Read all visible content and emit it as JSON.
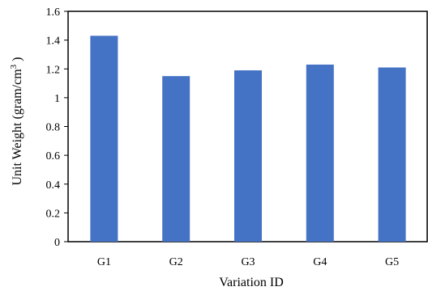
{
  "chart_data": {
    "type": "bar",
    "categories": [
      "G1",
      "G2",
      "G3",
      "G4",
      "G5"
    ],
    "values": [
      1.43,
      1.15,
      1.19,
      1.23,
      1.21
    ],
    "xlabel": "Variation ID",
    "ylabel": "Unit Weight (gram/cm",
    "ylabel_superscript": "3",
    "ylabel_suffix": " )",
    "ylim": [
      0,
      1.6
    ],
    "yticks": [
      "0",
      "0.2",
      "0.4",
      "0.6",
      "0.8",
      "1",
      "1.2",
      "1.4",
      "1.6"
    ],
    "grid": false,
    "bar_color": "#4472C4",
    "axis_color": "#000000"
  }
}
